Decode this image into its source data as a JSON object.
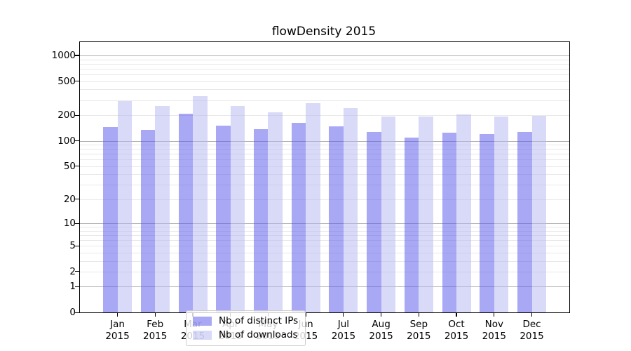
{
  "title": "flowDensity 2015",
  "colors": {
    "distinct_ips_bar": "rgba(81,81,235,0.5)",
    "downloads_bar": "rgba(179,179,241,0.5)",
    "distinct_ips_apparent": "#a8a8f5",
    "downloads_apparent": "#d9d9f8",
    "major_gridline": "#b0b0b0",
    "minor_gridline": "#e8e8e8",
    "axis": "#000000",
    "legend_border": "#cccccc"
  },
  "legend": {
    "items": [
      {
        "label": "Nb of distinct IPs",
        "series": "distinct_ips"
      },
      {
        "label": "Nb of downloads",
        "series": "downloads"
      }
    ]
  },
  "chart_data": {
    "type": "bar",
    "title": "flowDensity 2015",
    "categories": [
      "Jan 2015",
      "Feb 2015",
      "Mar 2015",
      "Apr 2015",
      "May 2015",
      "Jun 2015",
      "Jul 2015",
      "Aug 2015",
      "Sep 2015",
      "Oct 2015",
      "Nov 2015",
      "Dec 2015"
    ],
    "series": [
      {
        "name": "Nb of distinct IPs",
        "values": [
          144,
          134,
          209,
          152,
          136,
          164,
          147,
          128,
          108,
          124,
          121,
          128
        ]
      },
      {
        "name": "Nb of downloads",
        "values": [
          293,
          258,
          335,
          258,
          214,
          278,
          240,
          191,
          191,
          206,
          191,
          196
        ]
      }
    ],
    "xlabel": "",
    "ylabel": "",
    "yscale": "log1p",
    "ylim": [
      0,
      1430
    ],
    "yticks": [
      1000,
      500,
      200,
      100,
      50,
      20,
      10,
      5,
      2,
      1,
      0
    ],
    "grid": true,
    "legend_position": "lower center"
  }
}
